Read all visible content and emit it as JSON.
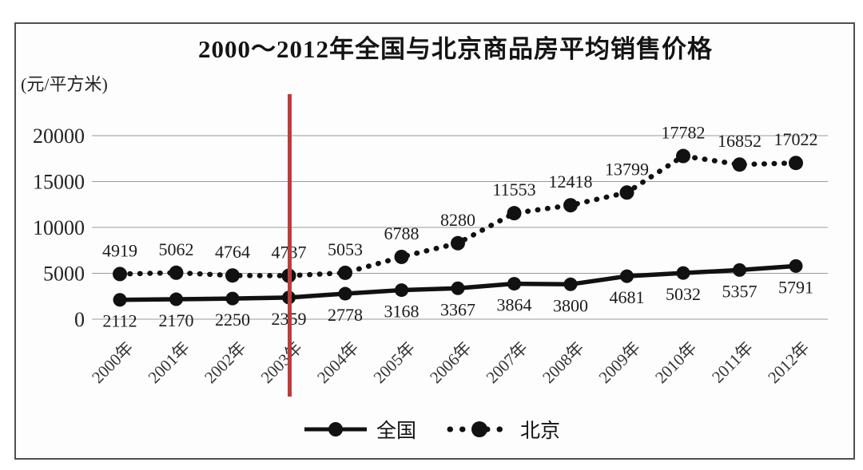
{
  "figure": {
    "title": "2000～2012年全国与北京商品房平均销售价格",
    "unit_label": "(元/平方米)"
  },
  "chart_data": {
    "type": "line",
    "title": "2000～2012年全国与北京商品房平均销售价格",
    "ylabel": "元/平方米",
    "categories": [
      "2000年",
      "2001年",
      "2002年",
      "2003年",
      "2004年",
      "2005年",
      "2006年",
      "2007年",
      "2008年",
      "2009年",
      "2010年",
      "2011年",
      "2012年"
    ],
    "series": [
      {
        "name": "全国",
        "style": "solid",
        "label_position": "below",
        "values": [
          2112,
          2170,
          2250,
          2359,
          2778,
          3168,
          3367,
          3864,
          3800,
          4681,
          5032,
          5357,
          5791
        ]
      },
      {
        "name": "北京",
        "style": "dotted",
        "label_position": "above",
        "values": [
          4919,
          5062,
          4764,
          4737,
          5053,
          6788,
          8280,
          11553,
          12418,
          13799,
          17782,
          16852,
          17022
        ]
      }
    ],
    "y_ticks": [
      0,
      5000,
      10000,
      15000,
      20000
    ],
    "ylim": [
      0,
      20000
    ],
    "grid": true,
    "legend_position": "bottom",
    "line_color": "#111111",
    "annotation": {
      "red_vertical_line_at": "2003年",
      "color": "#be3c3c"
    }
  }
}
